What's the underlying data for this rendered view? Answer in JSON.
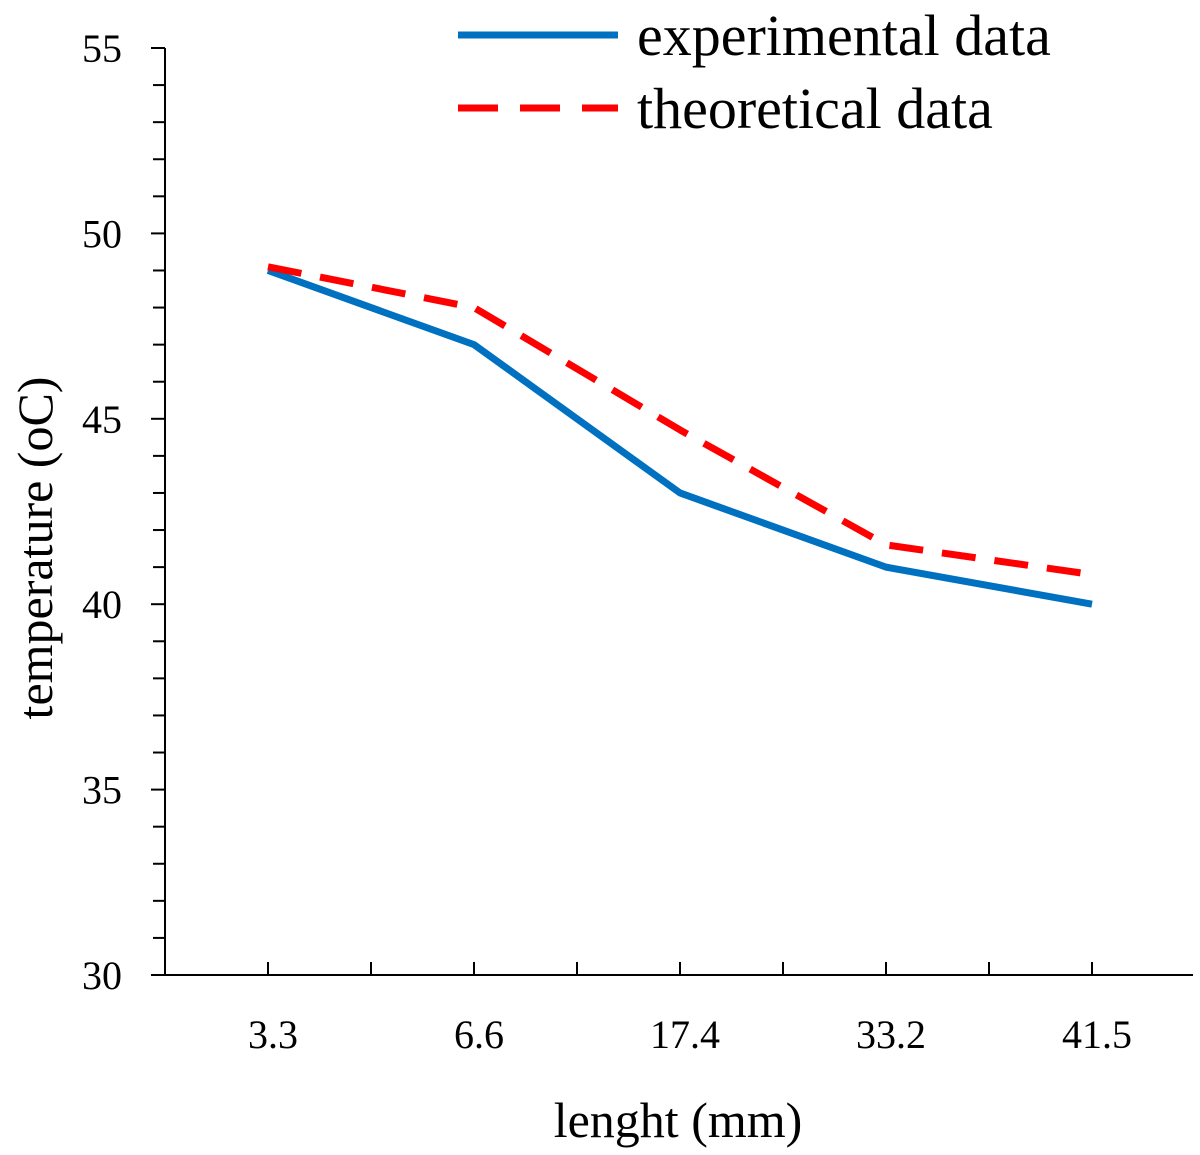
{
  "chart_data": {
    "type": "line",
    "title": "",
    "xlabel": "lenght (mm)",
    "ylabel": "temperature (oC)",
    "categories": [
      "3.3",
      "6.6",
      "17.4",
      "33.2",
      "41.5"
    ],
    "ylim": [
      30,
      55
    ],
    "yticks": [
      "30",
      "35",
      "40",
      "45",
      "50",
      "55"
    ],
    "y_minor_step": 1,
    "grid": false,
    "legend_position": "top-right",
    "series": [
      {
        "name": "experimental data",
        "values": [
          49.0,
          47.0,
          43.0,
          41.0,
          40.0
        ],
        "color": "#0070c0",
        "style": "solid"
      },
      {
        "name": "theoretical data",
        "values": [
          49.1,
          48.0,
          44.7,
          41.6,
          40.8
        ],
        "color": "#ff0000",
        "style": "dashed"
      }
    ]
  }
}
